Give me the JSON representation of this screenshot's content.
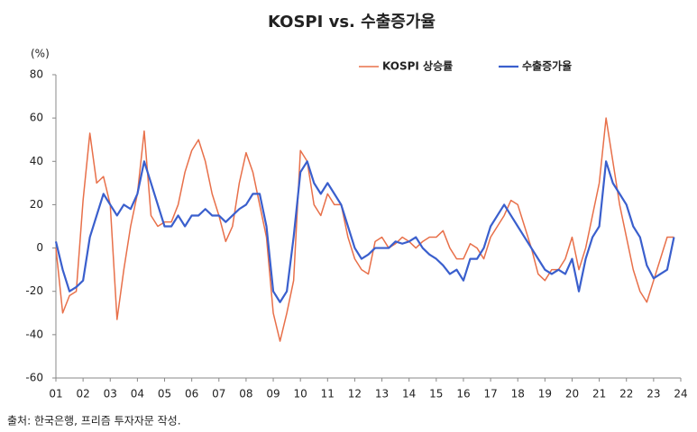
{
  "chart_data": {
    "type": "line",
    "title": "KOSPI vs. 수출증가율",
    "y_unit": "(%)",
    "source": "출처: 한국은행, 프리즘 투자자문 작성.",
    "x": [
      1,
      1.25,
      1.5,
      1.75,
      2,
      2.25,
      2.5,
      2.75,
      3,
      3.25,
      3.5,
      3.75,
      4,
      4.25,
      4.5,
      4.75,
      5,
      5.25,
      5.5,
      5.75,
      6,
      6.25,
      6.5,
      6.75,
      7,
      7.25,
      7.5,
      7.75,
      8,
      8.25,
      8.5,
      8.75,
      9,
      9.25,
      9.5,
      9.75,
      10,
      10.25,
      10.5,
      10.75,
      11,
      11.25,
      11.5,
      11.75,
      12,
      12.25,
      12.5,
      12.75,
      13,
      13.25,
      13.5,
      13.75,
      14,
      14.25,
      14.5,
      14.75,
      15,
      15.25,
      15.5,
      15.75,
      16,
      16.25,
      16.5,
      16.75,
      17,
      17.25,
      17.5,
      17.75,
      18,
      18.25,
      18.5,
      18.75,
      19,
      19.25,
      19.5,
      19.75,
      20,
      20.25,
      20.5,
      20.75,
      21,
      21.25,
      21.5,
      21.75,
      22,
      22.25,
      22.5,
      22.75,
      23,
      23.25,
      23.5,
      23.75
    ],
    "series": [
      {
        "name": "KOSPI 상승률",
        "color": "#e8704a",
        "width": 1.5,
        "values": [
          0,
          -30,
          -22,
          -20,
          22,
          53,
          30,
          33,
          20,
          -33,
          -10,
          10,
          25,
          54,
          15,
          10,
          12,
          12,
          20,
          35,
          45,
          50,
          40,
          25,
          15,
          3,
          10,
          30,
          44,
          35,
          20,
          5,
          -30,
          -43,
          -30,
          -15,
          45,
          40,
          20,
          15,
          25,
          20,
          20,
          5,
          -5,
          -10,
          -12,
          3,
          5,
          0,
          2,
          5,
          3,
          0,
          3,
          5,
          5,
          8,
          0,
          -5,
          -5,
          2,
          0,
          -5,
          5,
          10,
          15,
          22,
          20,
          10,
          0,
          -12,
          -15,
          -10,
          -10,
          -5,
          5,
          -10,
          0,
          15,
          30,
          60,
          40,
          20,
          5,
          -10,
          -20,
          -25,
          -15,
          -5,
          5,
          5
        ]
      },
      {
        "name": "수출증가율",
        "color": "#3a5fcd",
        "width": 2.2,
        "values": [
          3,
          -10,
          -20,
          -18,
          -15,
          5,
          15,
          25,
          20,
          15,
          20,
          18,
          25,
          40,
          30,
          20,
          10,
          10,
          15,
          10,
          15,
          15,
          18,
          15,
          15,
          12,
          15,
          18,
          20,
          25,
          25,
          10,
          -20,
          -25,
          -20,
          5,
          35,
          40,
          30,
          25,
          30,
          25,
          20,
          10,
          0,
          -5,
          -3,
          0,
          0,
          0,
          3,
          2,
          3,
          5,
          0,
          -3,
          -5,
          -8,
          -12,
          -10,
          -15,
          -5,
          -5,
          0,
          10,
          15,
          20,
          15,
          10,
          5,
          0,
          -5,
          -10,
          -12,
          -10,
          -12,
          -5,
          -20,
          -5,
          5,
          10,
          40,
          30,
          25,
          20,
          10,
          5,
          -8,
          -14,
          -12,
          -10,
          5
        ]
      }
    ],
    "xlim": [
      1,
      24
    ],
    "xticks": [
      {
        "value": 1,
        "label": "01"
      },
      {
        "value": 2,
        "label": "02"
      },
      {
        "value": 3,
        "label": "03"
      },
      {
        "value": 4,
        "label": "04"
      },
      {
        "value": 5,
        "label": "05"
      },
      {
        "value": 6,
        "label": "06"
      },
      {
        "value": 7,
        "label": "07"
      },
      {
        "value": 8,
        "label": "08"
      },
      {
        "value": 9,
        "label": "09"
      },
      10,
      11,
      12,
      13,
      14,
      15,
      16,
      17,
      18,
      19,
      20,
      21,
      22,
      23,
      24
    ],
    "ylim": [
      -60,
      80
    ],
    "yticks": [
      -60,
      -40,
      -20,
      0,
      20,
      40,
      60,
      80
    ],
    "grid": false
  }
}
